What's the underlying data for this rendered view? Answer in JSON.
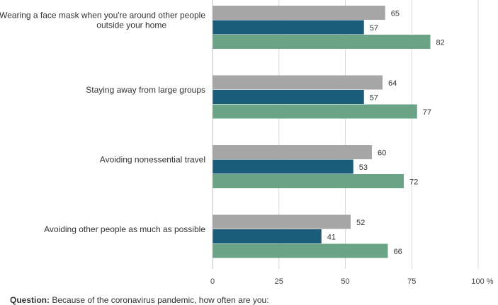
{
  "chart_data": {
    "type": "bar",
    "orientation": "horizontal",
    "categories": [
      [
        "Wearing a face mask when you're around other people",
        "outside your home"
      ],
      [
        "Staying away from large groups"
      ],
      [
        "Avoiding nonessential travel"
      ],
      [
        "Avoiding other people as much as possible"
      ]
    ],
    "series": [
      {
        "values": [
          65,
          64,
          60,
          52
        ],
        "color": "#a6a6a6"
      },
      {
        "values": [
          57,
          57,
          53,
          41
        ],
        "color": "#1a5c7a"
      },
      {
        "values": [
          82,
          77,
          72,
          66
        ],
        "color": "#6ba386"
      }
    ],
    "xlim": [
      0,
      100
    ],
    "xticks": [
      0,
      25,
      50,
      75,
      100
    ],
    "xtick_labels": [
      "0",
      "25",
      "50",
      "75",
      "100 %"
    ],
    "grid": true,
    "data_labels": true
  },
  "footnote": {
    "label": "Question:",
    "text": "Because of the coronavirus pandemic, how often are you:"
  }
}
